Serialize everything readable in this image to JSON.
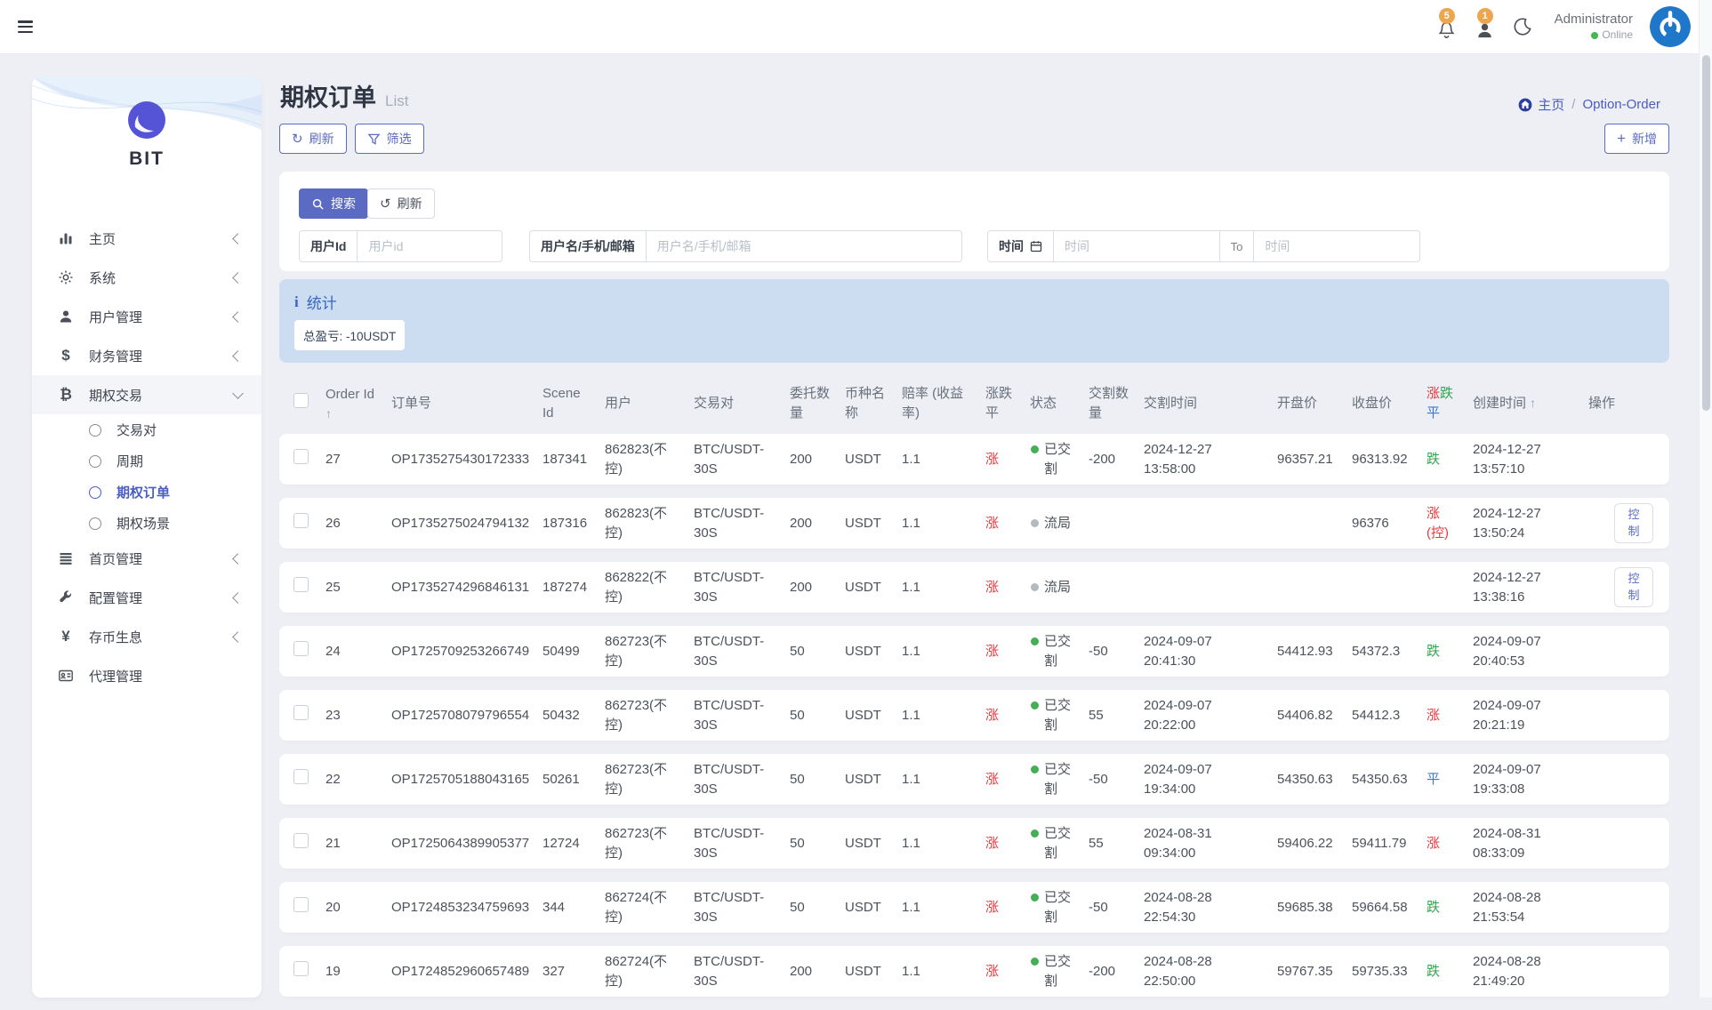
{
  "topbar": {
    "notification_count": "5",
    "message_count": "1",
    "user_name": "Administrator",
    "user_status": "Online"
  },
  "sidebar": {
    "brand": "BIT",
    "items": [
      {
        "key": "home",
        "icon": "bar-chart-icon",
        "label": "主页",
        "chevron": "left"
      },
      {
        "key": "system",
        "icon": "gear-icon",
        "label": "系统",
        "chevron": "left"
      },
      {
        "key": "user-management",
        "icon": "user-icon",
        "label": "用户管理",
        "chevron": "left"
      },
      {
        "key": "finance-management",
        "icon": "dollar-icon",
        "label": "财务管理",
        "chevron": "left"
      },
      {
        "key": "options-trading",
        "icon": "bitcoin-icon",
        "label": "期权交易",
        "chevron": "down",
        "expanded": true,
        "children": [
          {
            "key": "trading-pairs",
            "label": "交易对",
            "active": false
          },
          {
            "key": "cycle",
            "label": "周期",
            "active": false
          },
          {
            "key": "option-order",
            "label": "期权订单",
            "active": true
          },
          {
            "key": "option-scene",
            "label": "期权场景",
            "active": false
          }
        ]
      },
      {
        "key": "homepage-management",
        "icon": "list-icon",
        "label": "首页管理",
        "chevron": "left"
      },
      {
        "key": "config-management",
        "icon": "wrench-icon",
        "label": "配置管理",
        "chevron": "left"
      },
      {
        "key": "coin-savings",
        "icon": "yen-icon",
        "label": "存币生息",
        "chevron": "left"
      },
      {
        "key": "agent-management",
        "icon": "id-card-icon",
        "label": "代理管理",
        "chevron": null
      }
    ]
  },
  "page": {
    "title": "期权订单",
    "subtitle": "List",
    "breadcrumb": {
      "home": "主页",
      "separator": "/",
      "current": "Option-Order"
    },
    "toolbar": {
      "refresh": "刷新",
      "filter": "筛选",
      "add": "新增"
    }
  },
  "search": {
    "search_button": "搜索",
    "reset_button": "刷新",
    "user_id": {
      "label": "用户Id",
      "placeholder": "用户id"
    },
    "user_name": {
      "label": "用户名/手机/邮箱",
      "placeholder": "用户名/手机/邮箱"
    },
    "time": {
      "label": "时间",
      "from_placeholder": "时间",
      "to_label": "To",
      "to_placeholder": "时间"
    }
  },
  "stats": {
    "title": "统计",
    "total_pnl": "总盈亏: -10USDT"
  },
  "table": {
    "headers": [
      {
        "key": "select-all",
        "type": "checkbox"
      },
      {
        "key": "order-id",
        "label": "Order Id",
        "sortable": true,
        "sort_arrow": "below"
      },
      {
        "key": "order-no",
        "label": "订单号"
      },
      {
        "key": "scene-id",
        "label": "Scene Id"
      },
      {
        "key": "user",
        "label": "用户"
      },
      {
        "key": "pair",
        "label": "交易对"
      },
      {
        "key": "amount",
        "label": "委托数量"
      },
      {
        "key": "coin",
        "label": "币种名称"
      },
      {
        "key": "odds",
        "label": "赔率 (收益率)"
      },
      {
        "key": "side",
        "label": "涨跌平"
      },
      {
        "key": "status",
        "label": "状态"
      },
      {
        "key": "deliver-qty",
        "label": "交割数量"
      },
      {
        "key": "deliver-time",
        "label": "交割时间"
      },
      {
        "key": "open-price",
        "label": "开盘价"
      },
      {
        "key": "close-price",
        "label": "收盘价"
      },
      {
        "key": "result",
        "label": "涨跌平",
        "colored": [
          "red",
          "green",
          "blue"
        ]
      },
      {
        "key": "created",
        "label": "创建时间",
        "sortable": true,
        "sort_arrow": "inline"
      },
      {
        "key": "actions",
        "label": "操作"
      }
    ],
    "rows": [
      {
        "order_id": "27",
        "order_no": "OP1735275430172333",
        "scene_id": "187341",
        "user": "862823(不控)",
        "pair": "BTC/USDT-30S",
        "amount": "200",
        "coin": "USDT",
        "odds": "1.1",
        "side": "涨",
        "side_color": "red",
        "status": "已交割",
        "status_color": "green",
        "deliver_qty": "-200",
        "deliver_time": "2024-12-27 13:58:00",
        "open_price": "96357.21",
        "close_price": "96313.92",
        "result": "跌",
        "result_color": "green",
        "created": "2024-12-27 13:57:10",
        "action": null
      },
      {
        "order_id": "26",
        "order_no": "OP1735275024794132",
        "scene_id": "187316",
        "user": "862823(不控)",
        "pair": "BTC/USDT-30S",
        "amount": "200",
        "coin": "USDT",
        "odds": "1.1",
        "side": "涨",
        "side_color": "red",
        "status": "流局",
        "status_color": "gray",
        "deliver_qty": "",
        "deliver_time": "",
        "open_price": "",
        "close_price": "96376",
        "result": "涨(控)",
        "result_color": "red",
        "created": "2024-12-27 13:50:24",
        "action": "控制"
      },
      {
        "order_id": "25",
        "order_no": "OP1735274296846131",
        "scene_id": "187274",
        "user": "862822(不控)",
        "pair": "BTC/USDT-30S",
        "amount": "200",
        "coin": "USDT",
        "odds": "1.1",
        "side": "涨",
        "side_color": "red",
        "status": "流局",
        "status_color": "gray",
        "deliver_qty": "",
        "deliver_time": "",
        "open_price": "",
        "close_price": "",
        "result": "",
        "result_color": null,
        "created": "2024-12-27 13:38:16",
        "action": "控制"
      },
      {
        "order_id": "24",
        "order_no": "OP1725709253266749",
        "scene_id": "50499",
        "user": "862723(不控)",
        "pair": "BTC/USDT-30S",
        "amount": "50",
        "coin": "USDT",
        "odds": "1.1",
        "side": "涨",
        "side_color": "red",
        "status": "已交割",
        "status_color": "green",
        "deliver_qty": "-50",
        "deliver_time": "2024-09-07 20:41:30",
        "open_price": "54412.93",
        "close_price": "54372.3",
        "result": "跌",
        "result_color": "green",
        "created": "2024-09-07 20:40:53",
        "action": null
      },
      {
        "order_id": "23",
        "order_no": "OP1725708079796554",
        "scene_id": "50432",
        "user": "862723(不控)",
        "pair": "BTC/USDT-30S",
        "amount": "50",
        "coin": "USDT",
        "odds": "1.1",
        "side": "涨",
        "side_color": "red",
        "status": "已交割",
        "status_color": "green",
        "deliver_qty": "55",
        "deliver_time": "2024-09-07 20:22:00",
        "open_price": "54406.82",
        "close_price": "54412.3",
        "result": "涨",
        "result_color": "red",
        "created": "2024-09-07 20:21:19",
        "action": null
      },
      {
        "order_id": "22",
        "order_no": "OP1725705188043165",
        "scene_id": "50261",
        "user": "862723(不控)",
        "pair": "BTC/USDT-30S",
        "amount": "50",
        "coin": "USDT",
        "odds": "1.1",
        "side": "涨",
        "side_color": "red",
        "status": "已交割",
        "status_color": "green",
        "deliver_qty": "-50",
        "deliver_time": "2024-09-07 19:34:00",
        "open_price": "54350.63",
        "close_price": "54350.63",
        "result": "平",
        "result_color": "blue",
        "created": "2024-09-07 19:33:08",
        "action": null
      },
      {
        "order_id": "21",
        "order_no": "OP1725064389905377",
        "scene_id": "12724",
        "user": "862723(不控)",
        "pair": "BTC/USDT-30S",
        "amount": "50",
        "coin": "USDT",
        "odds": "1.1",
        "side": "涨",
        "side_color": "red",
        "status": "已交割",
        "status_color": "green",
        "deliver_qty": "55",
        "deliver_time": "2024-08-31 09:34:00",
        "open_price": "59406.22",
        "close_price": "59411.79",
        "result": "涨",
        "result_color": "red",
        "created": "2024-08-31 08:33:09",
        "action": null
      },
      {
        "order_id": "20",
        "order_no": "OP1724853234759693",
        "scene_id": "344",
        "user": "862724(不控)",
        "pair": "BTC/USDT-30S",
        "amount": "50",
        "coin": "USDT",
        "odds": "1.1",
        "side": "涨",
        "side_color": "red",
        "status": "已交割",
        "status_color": "green",
        "deliver_qty": "-50",
        "deliver_time": "2024-08-28 22:54:30",
        "open_price": "59685.38",
        "close_price": "59664.58",
        "result": "跌",
        "result_color": "green",
        "created": "2024-08-28 21:53:54",
        "action": null
      },
      {
        "order_id": "19",
        "order_no": "OP1724852960657489",
        "scene_id": "327",
        "user": "862724(不控)",
        "pair": "BTC/USDT-30S",
        "amount": "200",
        "coin": "USDT",
        "odds": "1.1",
        "side": "涨",
        "side_color": "red",
        "status": "已交割",
        "status_color": "green",
        "deliver_qty": "-200",
        "deliver_time": "2024-08-28 22:50:00",
        "open_price": "59767.35",
        "close_price": "59735.33",
        "result": "跌",
        "result_color": "green",
        "created": "2024-08-28 21:49:20",
        "action": null
      }
    ]
  },
  "colors": {
    "primary": "#5b6ac2",
    "red": "#e8383f",
    "green": "#30a64a",
    "blue": "#3a76d2",
    "badge_orange": "#eda64e",
    "stats_bg": "#ccddf1"
  }
}
